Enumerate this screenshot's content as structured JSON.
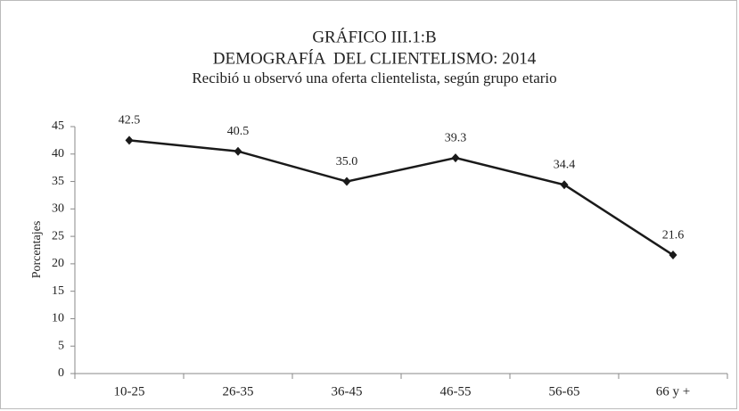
{
  "chart_data": {
    "type": "line",
    "title": [
      "GRÁFICO III.1:B",
      "DEMOGRAFÍA  DEL CLIENTELISMO: 2014"
    ],
    "subtitle": "Recibió u observó una oferta clientelista, según grupo etario",
    "y_label": "Porcentajes",
    "categories": [
      "10-25",
      "26-35",
      "36-45",
      "46-55",
      "56-65",
      "66 y +"
    ],
    "values": [
      42.5,
      40.5,
      35.0,
      39.3,
      34.4,
      21.6
    ],
    "value_labels": [
      "42.5",
      "40.5",
      "35.0",
      "39.3",
      "34.4",
      "21.6"
    ],
    "color": "#1a1a1a",
    "ylim": [
      0,
      45
    ],
    "yticks": [
      0,
      5,
      10,
      15,
      20,
      25,
      30,
      35,
      40,
      45
    ],
    "grid": false
  }
}
